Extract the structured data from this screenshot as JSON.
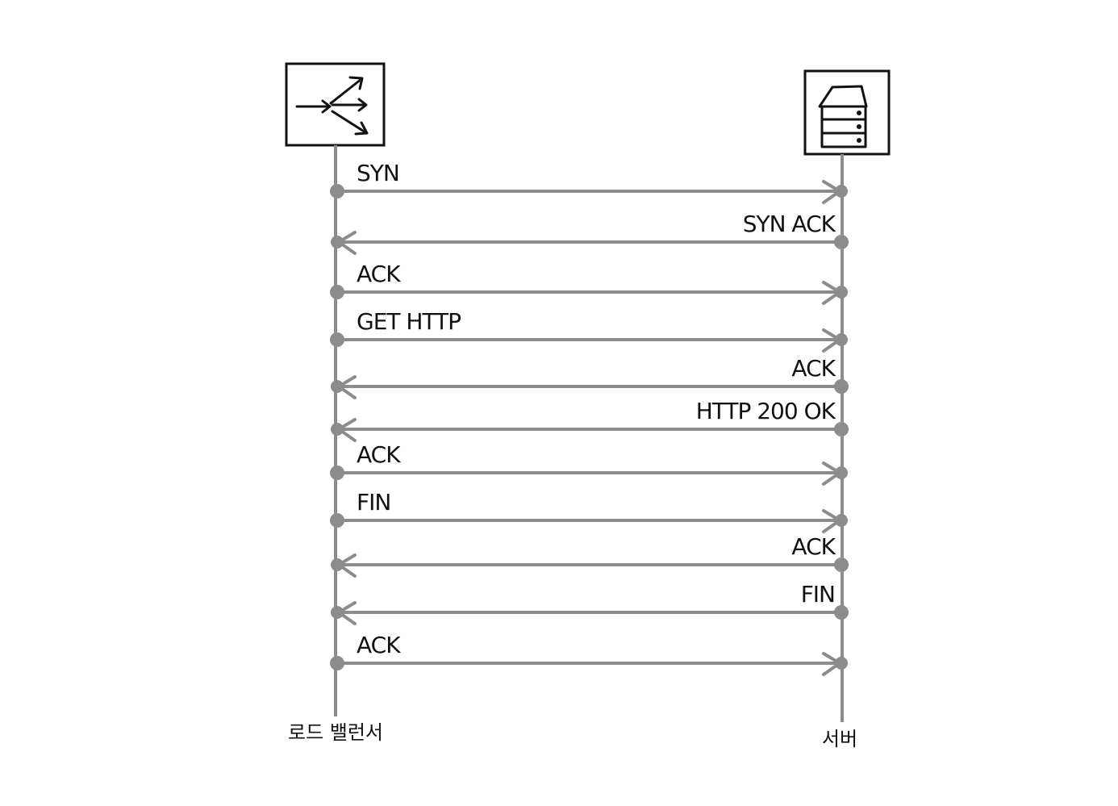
{
  "colors": {
    "line": "#8c8c8c",
    "ink": "#111111",
    "background": "#ffffff"
  },
  "actors": [
    {
      "id": "load-balancer",
      "label": "로드 밸런서",
      "icon": "load-balancer-icon"
    },
    {
      "id": "server",
      "label": "서버",
      "icon": "server-icon"
    }
  ],
  "messages": [
    {
      "label": "SYN",
      "from": "load-balancer",
      "to": "server"
    },
    {
      "label": "SYN ACK",
      "from": "server",
      "to": "load-balancer"
    },
    {
      "label": "ACK",
      "from": "load-balancer",
      "to": "server"
    },
    {
      "label": "GET HTTP",
      "from": "load-balancer",
      "to": "server"
    },
    {
      "label": "ACK",
      "from": "server",
      "to": "load-balancer"
    },
    {
      "label": "HTTP 200 OK",
      "from": "server",
      "to": "load-balancer"
    },
    {
      "label": "ACK",
      "from": "load-balancer",
      "to": "server"
    },
    {
      "label": "FIN",
      "from": "load-balancer",
      "to": "server"
    },
    {
      "label": "ACK",
      "from": "server",
      "to": "load-balancer"
    },
    {
      "label": "FIN",
      "from": "server",
      "to": "load-balancer"
    },
    {
      "label": "ACK",
      "from": "load-balancer",
      "to": "server"
    }
  ]
}
